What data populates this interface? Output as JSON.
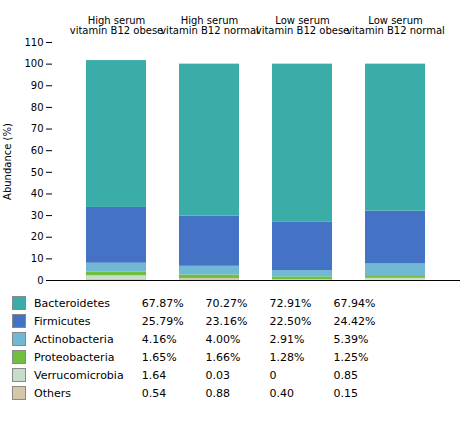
{
  "chart_data": {
    "type": "bar",
    "stacked": true,
    "ylabel": "Abundance (%)",
    "categories": [
      "High serum\nvitamin B12 obese",
      "High serum\nvitamin B12 normal",
      "Low serum\nvitamin B12 obese",
      "Low serum\nvitamin B12 normal"
    ],
    "series": [
      {
        "name": "Bacteroidetes",
        "color": "#3aada8",
        "values": [
          67.87,
          70.27,
          72.91,
          67.94
        ],
        "value_labels": [
          "67.87%",
          "70.27%",
          "72.91%",
          "67.94%"
        ]
      },
      {
        "name": "Firmicutes",
        "color": "#4472c4",
        "values": [
          25.79,
          23.16,
          22.5,
          24.42
        ],
        "value_labels": [
          "25.79%",
          "23.16%",
          "22.50%",
          "24.42%"
        ]
      },
      {
        "name": "Actinobacteria",
        "color": "#70b8d4",
        "values": [
          4.16,
          4.0,
          2.91,
          5.39
        ],
        "value_labels": [
          "4.16%",
          "4.00%",
          "2.91%",
          "5.39%"
        ]
      },
      {
        "name": "Proteobacteria",
        "color": "#70c040",
        "values": [
          1.65,
          1.66,
          1.28,
          1.25
        ],
        "value_labels": [
          "1.65%",
          "1.66%",
          "1.28%",
          "1.25%"
        ]
      },
      {
        "name": "Verrucomicrobia",
        "color": "#c8dcc8",
        "values": [
          1.64,
          0.03,
          0.0,
          0.85
        ],
        "value_labels": [
          "1.64",
          "0.03",
          "0",
          "0.85"
        ]
      },
      {
        "name": "Others",
        "color": "#d4c8a8",
        "values": [
          0.54,
          0.88,
          0.4,
          0.15
        ],
        "value_labels": [
          "0.54",
          "0.88",
          "0.40",
          "0.15"
        ]
      }
    ],
    "ylim": [
      0,
      110
    ],
    "yticks": [
      0,
      10,
      20,
      30,
      40,
      50,
      60,
      70,
      80,
      90,
      100,
      110
    ],
    "grid": false,
    "legend": "bottom"
  }
}
